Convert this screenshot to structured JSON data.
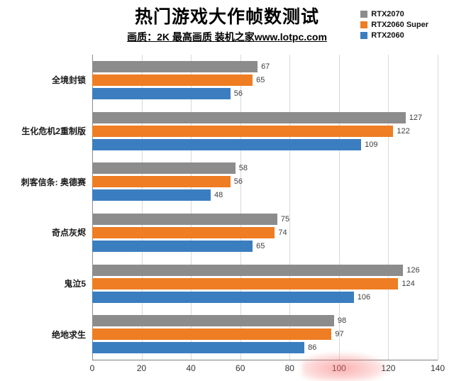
{
  "header": {
    "title": "热门游戏大作帧数测试",
    "subtitle": "画质：2K 最高画质 装机之家www.lotpc.com"
  },
  "legend": {
    "items": [
      {
        "label": "RTX2070",
        "color": "#8c8c8c"
      },
      {
        "label": "RTX2060 Super",
        "color": "#ee7d23"
      },
      {
        "label": "RTX2060",
        "color": "#3b7ec0"
      }
    ]
  },
  "chart_data": {
    "type": "bar",
    "orientation": "horizontal",
    "title": "热门游戏大作帧数测试",
    "subtitle": "画质：2K 最高画质 装机之家www.lotpc.com",
    "categories": [
      "全境封锁",
      "生化危机2重制版",
      "刺客信条: 奥德赛",
      "奇点灰烬",
      "鬼泣5",
      "绝地求生"
    ],
    "series": [
      {
        "name": "RTX2070",
        "color": "#8c8c8c",
        "values": [
          67,
          127,
          58,
          75,
          126,
          98
        ]
      },
      {
        "name": "RTX2060 Super",
        "color": "#ee7d23",
        "values": [
          65,
          122,
          56,
          74,
          124,
          97
        ]
      },
      {
        "name": "RTX2060",
        "color": "#3b7ec0",
        "values": [
          56,
          109,
          48,
          65,
          106,
          86
        ]
      }
    ],
    "xlabel": "",
    "ylabel": "",
    "xlim": [
      0,
      140
    ],
    "xticks": [
      0,
      20,
      40,
      60,
      80,
      100,
      120,
      140
    ],
    "grid": true,
    "legend_position": "top-right"
  }
}
